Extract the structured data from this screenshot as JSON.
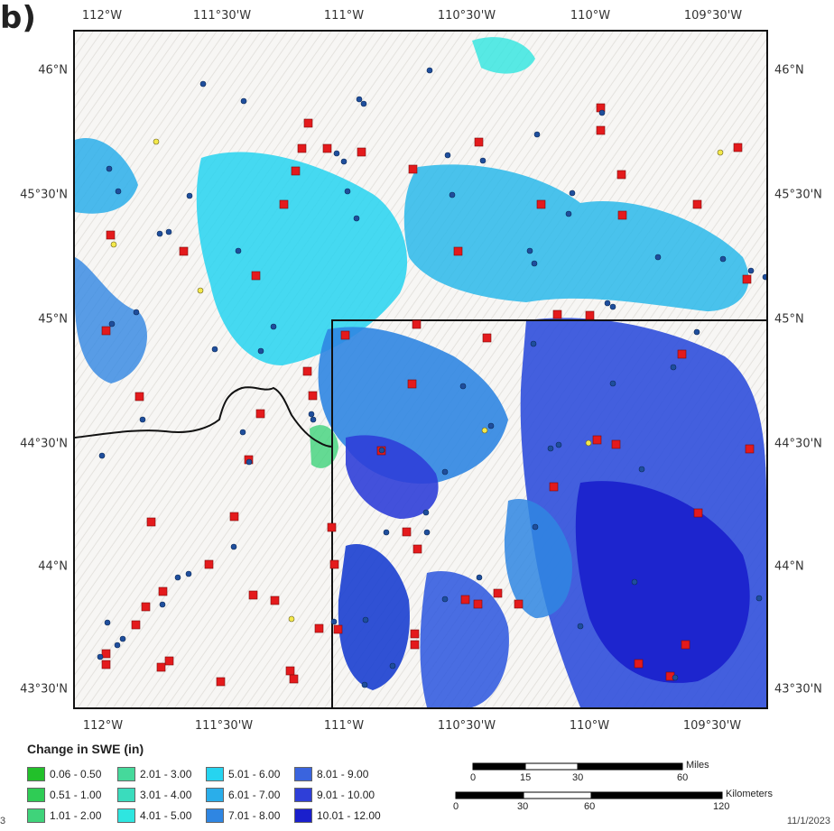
{
  "panel_label": "b)",
  "axes": {
    "top_ticks": [
      "112°W",
      "111°30'W",
      "111°W",
      "110°30'W",
      "110°W",
      "109°30'W"
    ],
    "bottom_ticks": [
      "112°W",
      "111°30'W",
      "111°W",
      "110°30'W",
      "110°W",
      "109°30'W"
    ],
    "left_ticks": [
      "46°N",
      "45°30'N",
      "45°N",
      "44°30'N",
      "44°N",
      "43°30'N"
    ],
    "right_ticks": [
      "46°N",
      "45°30'N",
      "45°N",
      "44°30'N",
      "44°N",
      "43°30'N"
    ]
  },
  "legend": {
    "title": "Change in SWE (in)",
    "items": [
      {
        "label": "0.06 - 0.50",
        "color": "#22c02a"
      },
      {
        "label": "0.51 - 1.00",
        "color": "#2fcc55"
      },
      {
        "label": "1.01 - 2.00",
        "color": "#3fd37a"
      },
      {
        "label": "2.01 - 3.00",
        "color": "#45d99b"
      },
      {
        "label": "3.01 - 4.00",
        "color": "#3adcbd"
      },
      {
        "label": "4.01 - 5.00",
        "color": "#2ee6e0"
      },
      {
        "label": "5.01 - 6.00",
        "color": "#26d4f0"
      },
      {
        "label": "6.01 - 7.00",
        "color": "#2aaeea"
      },
      {
        "label": "7.01 - 8.00",
        "color": "#2f86e2"
      },
      {
        "label": "8.01 - 9.00",
        "color": "#3a64de"
      },
      {
        "label": "9.01 - 10.00",
        "color": "#2f3fd8"
      },
      {
        "label": "10.01 - 12.00",
        "color": "#1a1fcc"
      }
    ]
  },
  "scalebars": {
    "miles_unit": "Miles",
    "miles_ticks": [
      "0",
      "15",
      "30",
      "60"
    ],
    "km_unit": "Kilometers",
    "km_ticks": [
      "0",
      "30",
      "60",
      "120"
    ]
  },
  "footer": {
    "left_fragment": "3",
    "date": "11/1/2023"
  },
  "colors": {
    "border": "#111111",
    "marker_square": "#e41a1c",
    "marker_dot": "#1f4e9c",
    "marker_dot_yellow": "#f3e84a"
  }
}
